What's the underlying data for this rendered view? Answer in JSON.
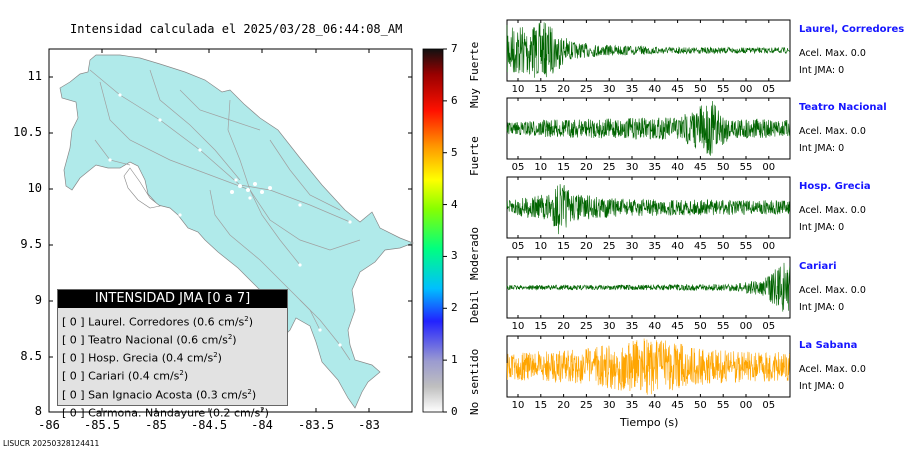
{
  "map": {
    "title": "Intensidad calculada el 2025/03/28_06:44:08_AM",
    "xticks": [
      "-86",
      "-85.5",
      "-85",
      "-84.5",
      "-84",
      "-83.5",
      "-83"
    ],
    "yticks": [
      "11",
      "10.5",
      "10",
      "9.5",
      "9",
      "8.5",
      "8"
    ],
    "land_color": "#b0eaea",
    "road_color": "#a0a0a0"
  },
  "legend": {
    "title": "INTENSIDAD JMA [0 a 7]",
    "items": [
      {
        "level": "[ 0 ]",
        "name": "Laurel. Corredores",
        "value": "(0.6 cm/s",
        "exp": "2",
        "close": ")"
      },
      {
        "level": "[ 0 ]",
        "name": "Teatro Nacional",
        "value": "(0.6 cm/s",
        "exp": "2",
        "close": ")"
      },
      {
        "level": "[ 0 ]",
        "name": "Hosp. Grecia",
        "value": "(0.4 cm/s",
        "exp": "2",
        "close": ")"
      },
      {
        "level": "[ 0 ]",
        "name": "Cariari",
        "value": "(0.4 cm/s",
        "exp": "2",
        "close": ")"
      },
      {
        "level": "[ 0 ]",
        "name": "San Ignacio Acosta",
        "value": "(0.3 cm/s",
        "exp": "2",
        "close": ")"
      },
      {
        "level": "[ 0 ]",
        "name": "Carmona. Nandayure",
        "value": "(0.2 cm/s",
        "exp": "2",
        "close": ")"
      }
    ]
  },
  "colorbar": {
    "numbers": [
      "7",
      "6",
      "5",
      "4",
      "3",
      "2",
      "1",
      "0"
    ],
    "words": [
      "Muy Fuerte",
      "Fuerte",
      "Moderado",
      "Debil",
      "No sentido"
    ]
  },
  "chart_data": {
    "type": "line",
    "xlabel": "Tiempo (s)",
    "panels": [
      {
        "station": "Laurel, Corredores",
        "accel": "Acel. Max. 0.0",
        "jma": "Int JMA: 0",
        "color": "#006400",
        "ticks": [
          "10",
          "15",
          "20",
          "25",
          "30",
          "35",
          "40",
          "45",
          "50",
          "55",
          "00",
          "05"
        ],
        "tick_start": 10,
        "envelope": [
          [
            5,
            0.9
          ],
          [
            12,
            1.0
          ],
          [
            18,
            0.3
          ],
          [
            25,
            0.2
          ],
          [
            40,
            0.12
          ],
          [
            60,
            0.1
          ]
        ]
      },
      {
        "station": "Teatro Nacional",
        "accel": "Acel. Max. 0.0",
        "jma": "Int JMA: 0",
        "color": "#006400",
        "ticks": [
          "05",
          "10",
          "15",
          "20",
          "25",
          "30",
          "35",
          "40",
          "45",
          "50",
          "55",
          "00"
        ],
        "tick_start": 5,
        "envelope": [
          [
            3,
            0.2
          ],
          [
            10,
            0.3
          ],
          [
            25,
            0.35
          ],
          [
            42,
            0.4
          ],
          [
            50,
            1.0
          ],
          [
            54,
            0.4
          ],
          [
            65,
            0.3
          ]
        ]
      },
      {
        "station": "Hosp. Grecia",
        "accel": "Acel. Max. 0.0",
        "jma": "Int JMA: 0",
        "color": "#006400",
        "ticks": [
          "05",
          "10",
          "15",
          "20",
          "25",
          "30",
          "35",
          "40",
          "45",
          "50",
          "55",
          "00"
        ],
        "tick_start": 5,
        "envelope": [
          [
            3,
            0.25
          ],
          [
            13,
            0.5
          ],
          [
            15,
            1.0
          ],
          [
            18,
            0.5
          ],
          [
            30,
            0.3
          ],
          [
            65,
            0.25
          ]
        ]
      },
      {
        "station": "Cariari",
        "accel": "Acel. Max. 0.0",
        "jma": "Int JMA: 0",
        "color": "#006400",
        "ticks": [
          "10",
          "15",
          "20",
          "25",
          "30",
          "35",
          "40",
          "45",
          "50",
          "55",
          "00",
          "05"
        ],
        "tick_start": 10,
        "envelope": [
          [
            5,
            0.08
          ],
          [
            40,
            0.1
          ],
          [
            55,
            0.12
          ],
          [
            62,
            0.3
          ],
          [
            67,
            1.0
          ]
        ]
      },
      {
        "station": "La Sabana",
        "accel": "Acel. Max. 0.0",
        "jma": "Int JMA: 0",
        "color": "#ffa500",
        "ticks": [
          "10",
          "15",
          "20",
          "25",
          "30",
          "35",
          "40",
          "45",
          "50",
          "55",
          "00",
          "05"
        ],
        "tick_start": 10,
        "envelope": [
          [
            5,
            0.5
          ],
          [
            20,
            0.6
          ],
          [
            35,
            1.0
          ],
          [
            40,
            0.9
          ],
          [
            50,
            0.6
          ],
          [
            67,
            0.5
          ]
        ]
      }
    ]
  },
  "footer": "LISUCR 20250328124411"
}
